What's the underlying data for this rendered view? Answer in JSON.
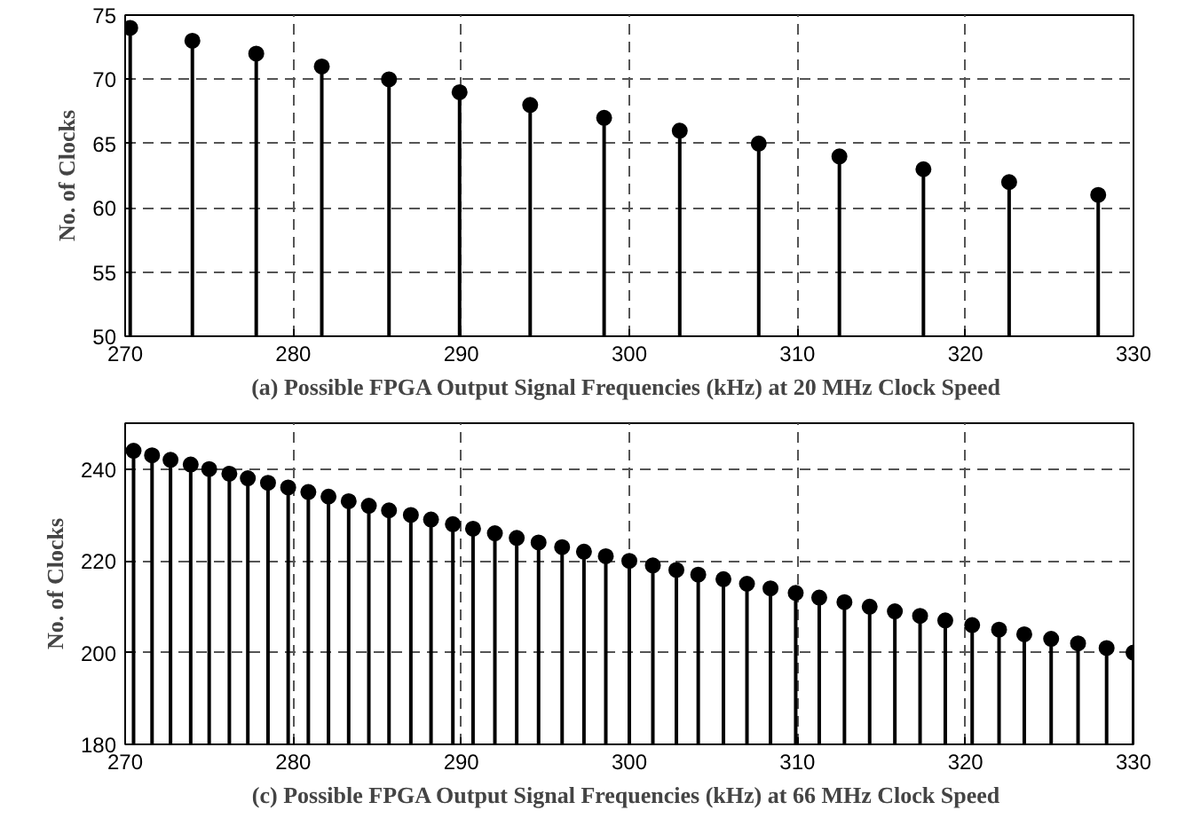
{
  "chart_data": [
    {
      "type": "lollipop",
      "xlabel": "(a) Possible FPGA Output Signal Frequencies (kHz) at  20 MHz Clock Speed",
      "ylabel": "No. of Clocks",
      "x": [
        270.3,
        274.0,
        277.8,
        281.7,
        285.7,
        289.9,
        294.1,
        298.5,
        303.0,
        307.7,
        312.5,
        317.5,
        322.6,
        327.9
      ],
      "series": [
        {
          "color": "#000000",
          "values": [
            74,
            73,
            72,
            71,
            70,
            69,
            68,
            67,
            66,
            65,
            64,
            63,
            62,
            61
          ]
        }
      ],
      "xlim": [
        270,
        330
      ],
      "xticks": [
        270,
        280,
        290,
        300,
        310,
        320,
        330
      ],
      "ylim": [
        50,
        75
      ],
      "yticks": [
        50,
        55,
        60,
        65,
        70,
        75
      ],
      "grid": true,
      "marker": "circle"
    },
    {
      "type": "lollipop",
      "xlabel": "(c) Possible FPGA Output Signal Frequencies (kHz) at  66 MHz Clock Speed",
      "ylabel": "No. of Clocks",
      "x": [
        270.5,
        271.6,
        272.7,
        273.9,
        275.0,
        276.2,
        277.3,
        278.5,
        279.7,
        280.9,
        282.1,
        283.3,
        284.5,
        285.7,
        287.0,
        288.2,
        289.5,
        290.7,
        292.0,
        293.3,
        294.6,
        296.0,
        297.3,
        298.6,
        300.0,
        301.4,
        302.8,
        304.1,
        305.6,
        307.0,
        308.4,
        309.9,
        311.3,
        312.8,
        314.3,
        315.8,
        317.3,
        318.8,
        320.4,
        322.0,
        323.5,
        325.1,
        326.7,
        328.4,
        330.0
      ],
      "series": [
        {
          "color": "#000000",
          "values": [
            244,
            243,
            242,
            241,
            240,
            239,
            238,
            237,
            236,
            235,
            234,
            233,
            232,
            231,
            230,
            229,
            228,
            227,
            226,
            225,
            224,
            223,
            222,
            221,
            220,
            219,
            218,
            217,
            216,
            215,
            214,
            213,
            212,
            211,
            210,
            209,
            208,
            207,
            206,
            205,
            204,
            203,
            202,
            201,
            200
          ]
        }
      ],
      "xlim": [
        270,
        330
      ],
      "xticks": [
        270,
        280,
        290,
        300,
        310,
        320,
        330
      ],
      "ylim": [
        180,
        250
      ],
      "yticks": [
        180,
        200,
        220,
        240
      ],
      "grid": true,
      "marker": "circle"
    }
  ]
}
